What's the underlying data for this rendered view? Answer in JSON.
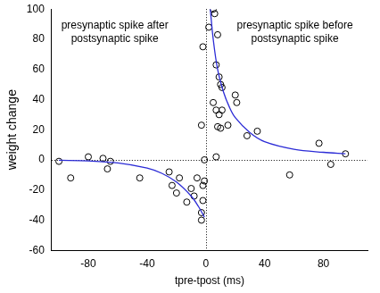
{
  "chart_data": {
    "type": "scatter",
    "x_label": "tpre-tpost (ms)",
    "y_label": "weight change",
    "xlim": [
      -105,
      110
    ],
    "ylim": [
      -60,
      100
    ],
    "xticks": [
      -80,
      -40,
      0,
      40,
      80
    ],
    "yticks": [
      -60,
      -40,
      -20,
      0,
      20,
      40,
      60,
      80,
      100
    ],
    "grid": false,
    "hlines": [
      0
    ],
    "vlines": [
      0
    ],
    "annotations": [
      "presynaptic spike after\npostsynaptic spike",
      "presynaptic spike before\npostsynaptic spike"
    ],
    "series": [
      {
        "type": "scatter",
        "marker": "circle",
        "color": "#000000",
        "x": [
          -100,
          -92,
          -80,
          -70,
          -67,
          -65,
          -45,
          -25,
          -23,
          -20,
          -18,
          -13,
          -10,
          -8,
          -6,
          -3,
          -3,
          -2,
          -2,
          -1,
          -1,
          -3,
          -2,
          2,
          5,
          6,
          7,
          8,
          9,
          10,
          11,
          11,
          9,
          7,
          8,
          10,
          5,
          7,
          15,
          20,
          21,
          28,
          35,
          57,
          77,
          85,
          95
        ],
        "y": [
          -1,
          -12,
          2,
          1,
          -6,
          -1,
          -12,
          -8,
          -17,
          -22,
          -12,
          -28,
          -19,
          -24,
          -12,
          -35,
          -40,
          -27,
          -17,
          -14,
          0,
          23,
          75,
          88,
          100,
          97,
          63,
          83,
          55,
          50,
          48,
          33,
          30,
          33,
          22,
          21,
          38,
          2,
          23,
          43,
          38,
          16,
          19,
          -10,
          11,
          -3,
          4
        ]
      },
      {
        "type": "line",
        "line_style": "solid",
        "color": "#2b2bd6",
        "x": [
          -100,
          -80,
          -60,
          -40,
          -30,
          -20,
          -10,
          -5,
          -1
        ],
        "y": [
          -0.3,
          -0.7,
          -2,
          -5.4,
          -8.9,
          -14.7,
          -24,
          -31,
          -38
        ]
      },
      {
        "type": "line",
        "line_style": "solid",
        "color": "#2b2bd6",
        "x": [
          3,
          5,
          8,
          12,
          16,
          20,
          30,
          40,
          60,
          80,
          95
        ],
        "y": [
          100,
          80,
          60,
          45,
          35,
          28,
          18,
          12,
          7,
          5,
          4
        ]
      }
    ]
  }
}
